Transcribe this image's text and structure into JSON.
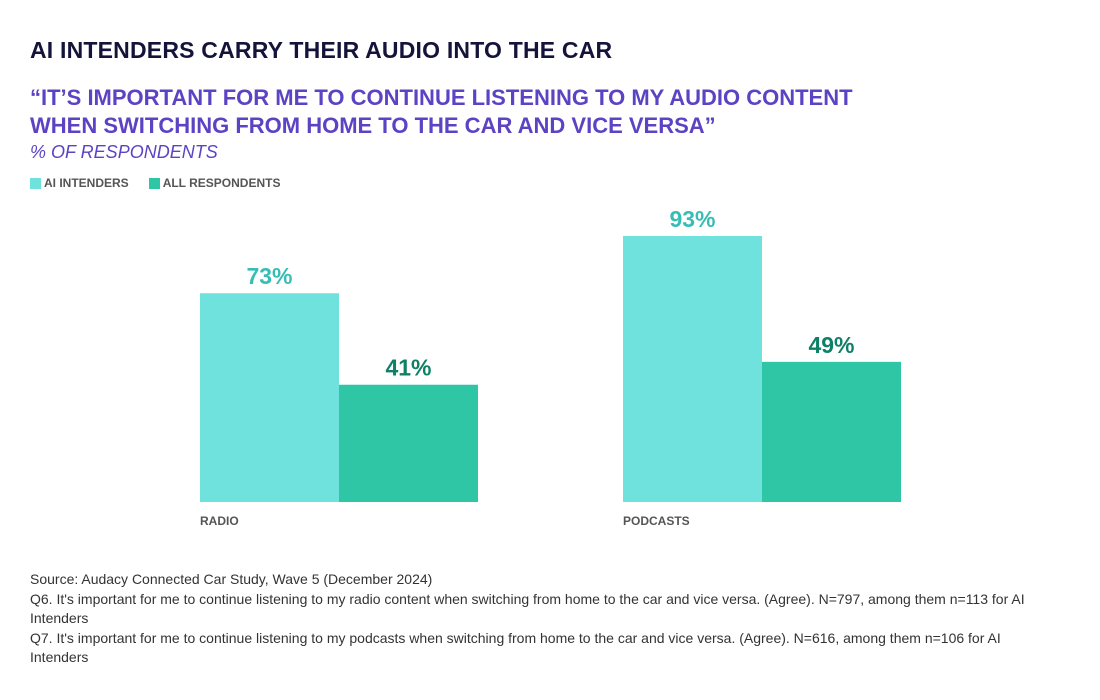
{
  "header": {
    "title": "AI INTENDERS CARRY THEIR AUDIO INTO THE CAR",
    "quote_line1": "“IT’S IMPORTANT FOR ME TO CONTINUE LISTENING TO MY AUDIO CONTENT",
    "quote_line2": "WHEN SWITCHING FROM HOME TO THE CAR AND VICE VERSA”",
    "unit_label": "% OF RESPONDENTS"
  },
  "colors": {
    "ai_intenders": "#6fe2dd",
    "all_respondents": "#2fc6a5",
    "label_ai": "#38bdb6",
    "label_all": "#0f8068"
  },
  "chart_data": {
    "type": "bar",
    "categories": [
      "RADIO",
      "PODCASTS"
    ],
    "series": [
      {
        "name": "AI INTENDERS",
        "values": [
          73,
          93
        ]
      },
      {
        "name": "ALL RESPONDENTS",
        "values": [
          41,
          49
        ]
      }
    ],
    "data_labels": [
      [
        "73%",
        "93%"
      ],
      [
        "41%",
        "49%"
      ]
    ],
    "ylim": [
      0,
      100
    ],
    "legend": "top-left",
    "grid": false
  },
  "footnotes": {
    "source": "Source: Audacy Connected Car Study, Wave 5 (December 2024)",
    "q6": "Q6. It's important for me to continue listening to my radio content when switching from home to the car and vice versa. (Agree). N=797, among them n=113 for AI Intenders",
    "q7": "Q7. It's important for me to continue listening to my podcasts when switching from home to the car and vice versa. (Agree). N=616, among them n=106 for AI Intenders"
  }
}
